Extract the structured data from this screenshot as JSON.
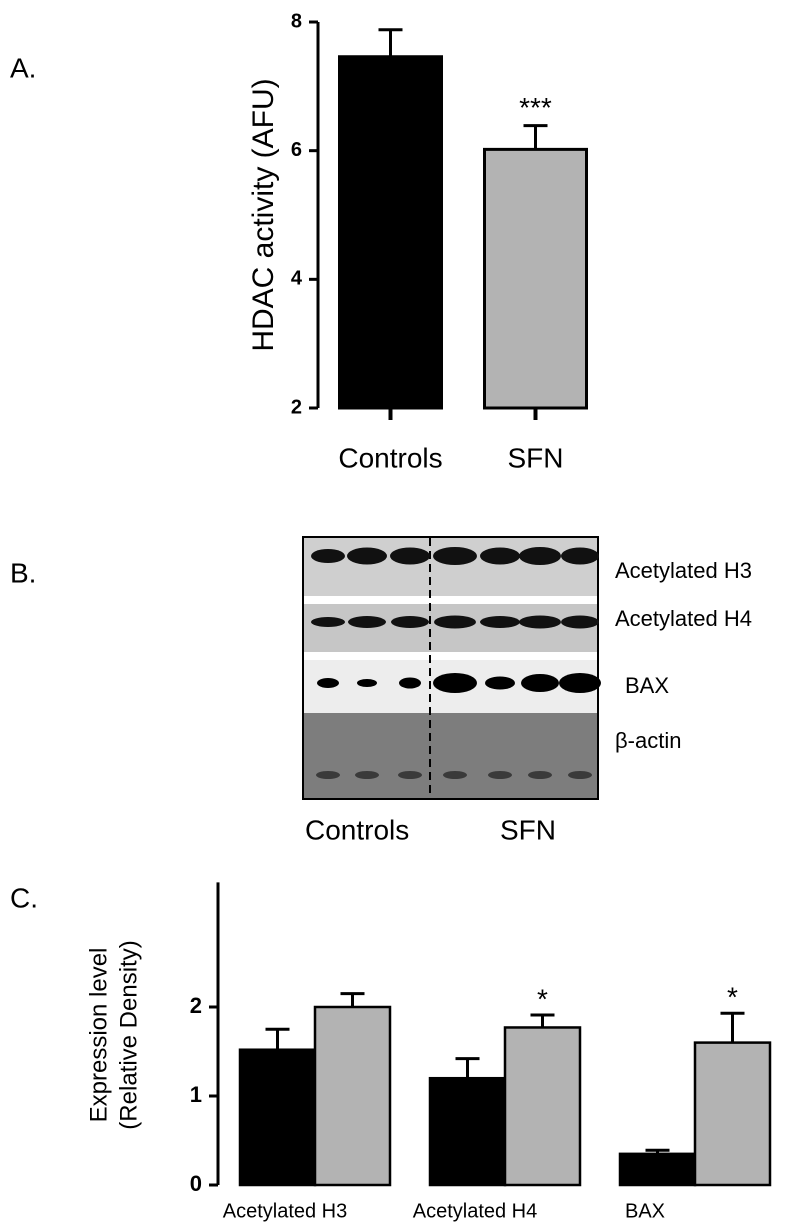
{
  "chart_data": [
    {
      "type": "bar",
      "panel_label": "A.",
      "ylabel": "HDAC activity (AFU)",
      "categories": [
        "Controls",
        "SFN"
      ],
      "values": [
        7.46,
        6.02
      ],
      "errors": [
        0.42,
        0.37
      ],
      "colors": [
        "#000000",
        "#b3b3b3"
      ],
      "annotations": [
        null,
        "***"
      ],
      "ylim": [
        2,
        8
      ],
      "yticks": [
        2,
        4,
        6,
        8
      ]
    },
    {
      "type": "grouped_bar",
      "panel_label": "C.",
      "ylabel": [
        "Expression level",
        "(Relative Density)"
      ],
      "categories": [
        "Acetylated H3",
        "Acetylated H4",
        "BAX"
      ],
      "series": [
        {
          "color": "#000000",
          "values": [
            1.52,
            1.2,
            0.35
          ],
          "errors": [
            0.23,
            0.22,
            0.04
          ],
          "annotations": [
            null,
            null,
            null
          ]
        },
        {
          "color": "#b3b3b3",
          "values": [
            2.0,
            1.77,
            1.6
          ],
          "errors": [
            0.15,
            0.14,
            0.33
          ],
          "annotations": [
            null,
            "*",
            "*"
          ]
        }
      ],
      "ylim": [
        0,
        3.4
      ],
      "yticks": [
        0,
        1,
        2
      ]
    }
  ],
  "blot": {
    "panel_label": "B.",
    "rows": [
      "Acetylated H3",
      "Acetylated H4",
      "BAX",
      "β-actin"
    ],
    "groups": [
      "Controls",
      "SFN"
    ]
  }
}
